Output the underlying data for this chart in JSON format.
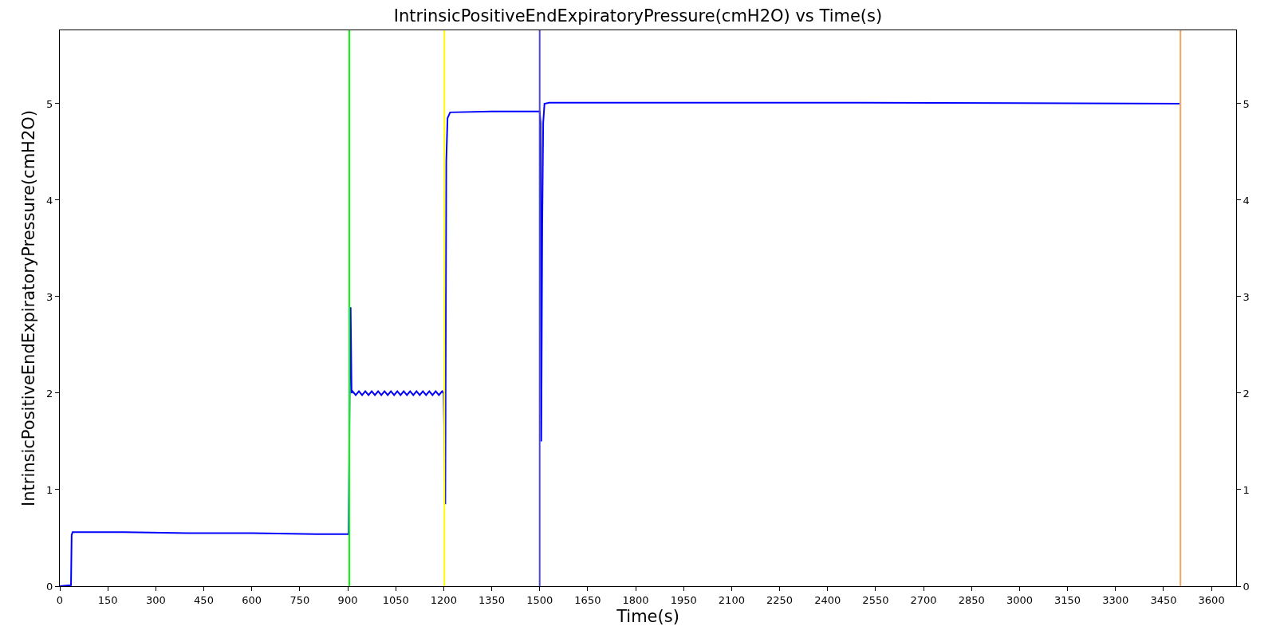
{
  "chart_data": {
    "type": "line",
    "title": "IntrinsicPositiveEndExpiratoryPressure(cmH2O) vs Time(s)",
    "xlabel": "Time(s)",
    "ylabel": "IntrinsicPositiveEndExpiratoryPressure(cmH2O)",
    "x": [
      0,
      35,
      37,
      40,
      200,
      400,
      600,
      800,
      903,
      906,
      909,
      912,
      915,
      925,
      935,
      945,
      955,
      965,
      975,
      985,
      995,
      1005,
      1015,
      1025,
      1035,
      1045,
      1055,
      1065,
      1075,
      1085,
      1095,
      1105,
      1115,
      1125,
      1135,
      1145,
      1155,
      1165,
      1175,
      1185,
      1195,
      1200,
      1205,
      1208,
      1212,
      1220,
      1350,
      1500,
      1503,
      1505,
      1508,
      1511,
      1515,
      1530,
      1750,
      2500,
      3500
    ],
    "series": [
      {
        "color": "#0000ff",
        "values": [
          0,
          0.01,
          0.53,
          0.56,
          0.56,
          0.55,
          0.55,
          0.54,
          0.54,
          2.0,
          2.89,
          2.0,
          2.02,
          1.98,
          2.02,
          1.98,
          2.02,
          1.98,
          2.02,
          1.98,
          2.02,
          1.98,
          2.02,
          1.98,
          2.02,
          1.98,
          2.02,
          1.98,
          2.02,
          1.98,
          2.02,
          1.98,
          2.02,
          1.98,
          2.02,
          1.98,
          2.02,
          1.98,
          2.02,
          1.98,
          2.02,
          2.0,
          0.85,
          4.4,
          4.85,
          4.91,
          4.92,
          4.92,
          4.8,
          1.5,
          3.75,
          4.8,
          5.0,
          5.01,
          5.01,
          5.01,
          5.0
        ]
      }
    ],
    "xlim": [
      0,
      3677
    ],
    "xticks": [
      0,
      150,
      300,
      450,
      600,
      750,
      900,
      1050,
      1200,
      1350,
      1500,
      1650,
      1800,
      1950,
      2100,
      2250,
      2400,
      2550,
      2700,
      2850,
      3000,
      3150,
      3300,
      3450,
      3600
    ],
    "ylim": [
      0,
      5.76
    ],
    "yticks": [
      0,
      1,
      2,
      3,
      4,
      5
    ],
    "y2lim": [
      0,
      5.76
    ],
    "y2ticks": [
      0,
      1,
      2,
      3,
      4,
      5
    ],
    "ref_lines": [
      {
        "axis": "x",
        "value": 905,
        "color": "#00ff00"
      },
      {
        "axis": "x",
        "value": 1202,
        "color": "#ffff00"
      },
      {
        "axis": "x",
        "value": 1500,
        "color": "#4b4bcc"
      },
      {
        "axis": "x",
        "value": 3503,
        "color": "#f4a460"
      }
    ],
    "line_style": "solid",
    "marker": "none"
  }
}
